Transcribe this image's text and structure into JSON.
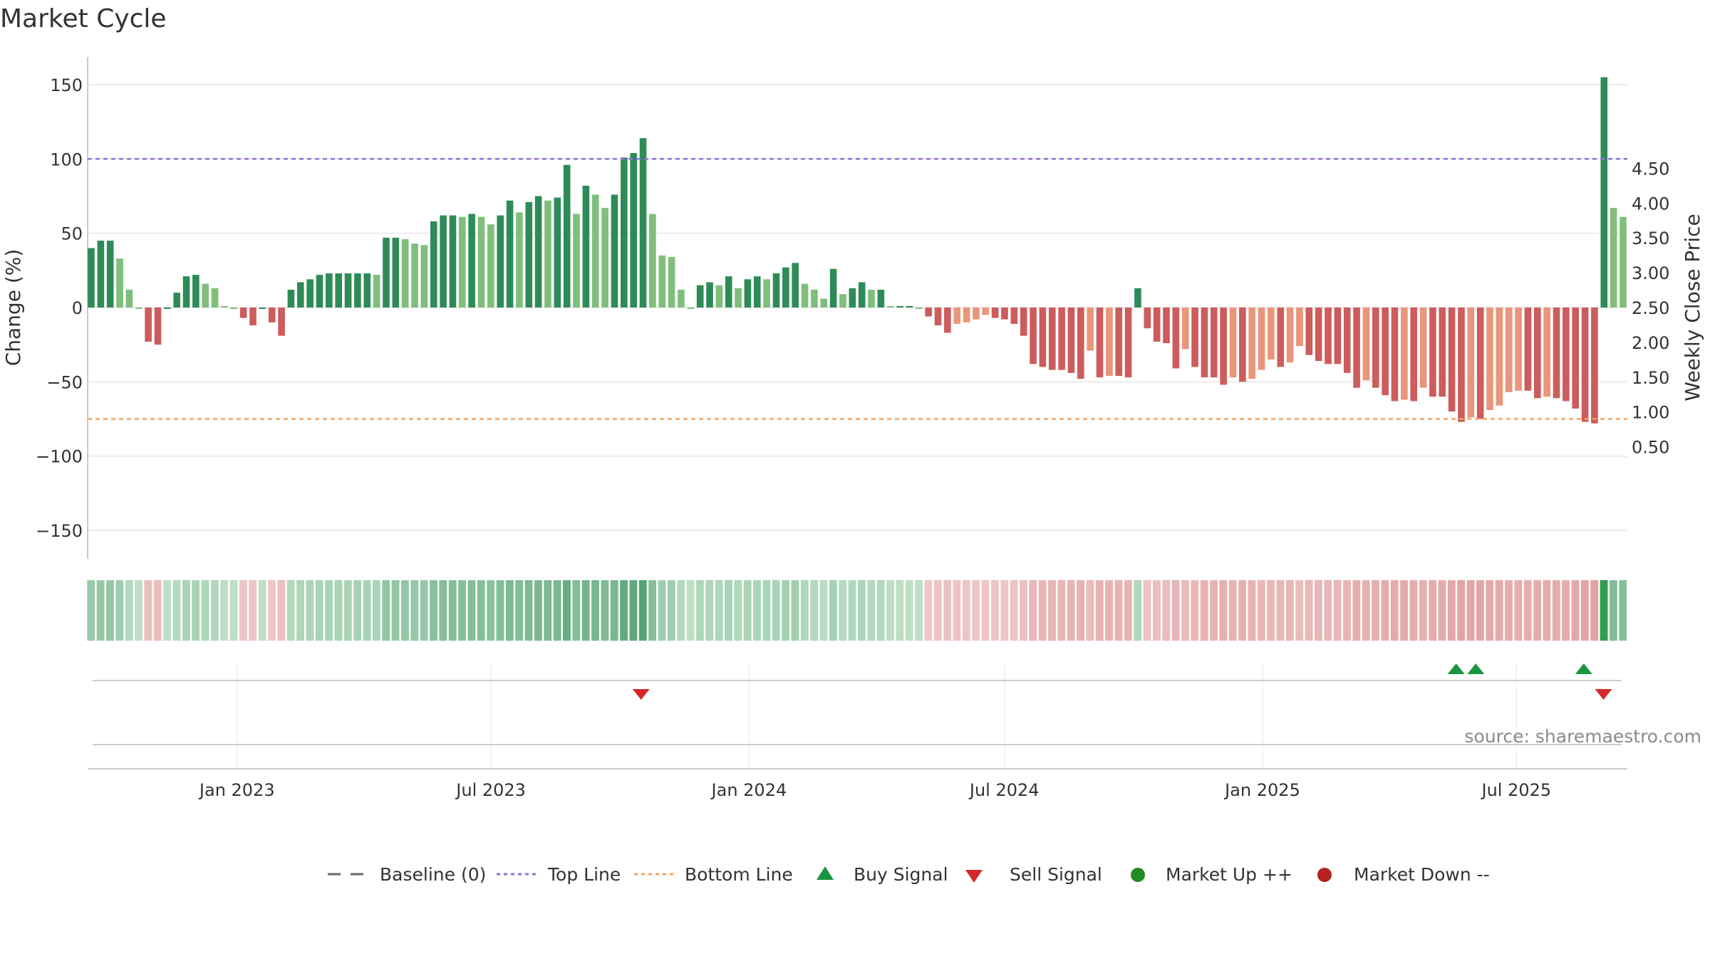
{
  "chart_data": {
    "type": "bar",
    "title": "Market Cycle",
    "ylabel": "Change (%)",
    "y2label": "Weekly Close Price",
    "ylim": [
      -170,
      170
    ],
    "y2lim": [
      0.2,
      4.8
    ],
    "yticks": [
      150,
      100,
      50,
      0,
      -50,
      -100,
      -150
    ],
    "yticklabels": [
      "150",
      "100",
      "50",
      "0",
      "−50",
      "−100",
      "−150"
    ],
    "y2ticks": [
      4.5,
      4.0,
      3.5,
      3.0,
      2.5,
      2.0,
      1.5,
      1.0,
      0.5
    ],
    "y2ticklabels": [
      "4.50",
      "4.00",
      "3.50",
      "3.00",
      "2.50",
      "2.00",
      "1.50",
      "1.00",
      "0.50"
    ],
    "top_line": 100,
    "bottom_line": -75,
    "x_start": "2022-09-19",
    "x_end": "2025-09-15",
    "xticks": [
      "2023-01-01",
      "2023-07-01",
      "2024-01-01",
      "2024-07-01",
      "2025-01-01",
      "2025-07-01"
    ],
    "xticklabels": [
      "Jan 2023",
      "Jul 2023",
      "Jan 2024",
      "Jul 2024",
      "Jan 2025",
      "Jul 2025"
    ],
    "grid": true,
    "values": [
      40,
      45,
      45,
      33,
      12,
      0,
      -23,
      -25,
      0,
      10,
      21,
      22,
      16,
      13,
      1,
      0,
      -7,
      -12,
      0,
      -10,
      -19,
      12,
      17,
      19,
      22,
      23,
      23,
      23,
      23,
      23,
      22,
      47,
      47,
      46,
      43,
      42,
      58,
      62,
      62,
      61,
      63,
      61,
      56,
      62,
      72,
      64,
      71,
      75,
      72,
      74,
      96,
      63,
      82,
      76,
      67,
      76,
      101,
      104,
      114,
      63,
      35,
      34,
      12,
      0,
      15,
      17,
      15,
      21,
      13,
      19,
      21,
      19,
      23,
      27,
      30,
      16,
      12,
      6,
      26,
      9,
      13,
      17,
      12,
      12,
      1,
      1,
      1,
      0,
      -6,
      -12,
      -17,
      -11,
      -10,
      -8,
      -5,
      -7,
      -8,
      -11,
      -19,
      -38,
      -40,
      -42,
      -42,
      -44,
      -48,
      -29,
      -47,
      -46,
      -46,
      -47,
      13,
      -14,
      -23,
      -24,
      -41,
      -28,
      -40,
      -47,
      -47,
      -52,
      -47,
      -50,
      -48,
      -42,
      -35,
      -40,
      -37,
      -26,
      -32,
      -36,
      -38,
      -38,
      -44,
      -54,
      -49,
      -54,
      -59,
      -63,
      -62,
      -63,
      -54,
      -60,
      -60,
      -70,
      -77,
      -74,
      -75,
      -69,
      -66,
      -57,
      -56,
      -56,
      -61,
      -60,
      -61,
      -63,
      -68,
      -77,
      -78,
      155,
      67,
      61
    ],
    "series_legend": {
      "baseline": "Baseline (0)",
      "top": "Top Line",
      "bottom": "Bottom Line",
      "buy": "Buy Signal",
      "sell": "Sell Signal",
      "up": "Market Up ++",
      "down": "Market Down --"
    },
    "buy_signals": [
      "2025-05-19",
      "2025-06-02",
      "2025-08-18"
    ],
    "sell_signals": [
      "2023-10-16",
      "2025-09-01"
    ],
    "legend_position": "bottom"
  },
  "colors": {
    "green_dark": "#2e8b57",
    "green_light": "#7fbf7b",
    "red_dark": "#cd5c5c",
    "red_light": "#e9967a",
    "top_line": "#9370db",
    "bottom_line": "#f4a460",
    "buy": "#1a9641",
    "sell": "#d62728",
    "up": "#228b22",
    "down": "#b22222"
  },
  "source": "source: sharemaestro.com"
}
